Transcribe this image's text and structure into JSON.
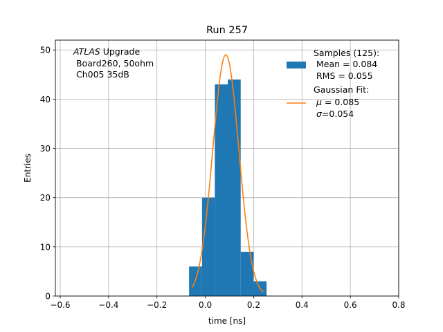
{
  "chart_data": {
    "type": "bar",
    "title": "Run 257",
    "xlabel": "time [ns]",
    "ylabel": "Entries",
    "xlim": [
      -0.62,
      0.8
    ],
    "ylim": [
      0,
      52
    ],
    "grid": true,
    "x_ticks": [
      -0.6,
      -0.4,
      -0.2,
      0.0,
      0.2,
      0.4,
      0.6,
      0.8
    ],
    "x_tick_labels": [
      "−0.6",
      "−0.4",
      "−0.2",
      "0.0",
      "0.2",
      "0.4",
      "0.6",
      "0.8"
    ],
    "y_ticks": [
      0,
      10,
      20,
      30,
      40,
      50
    ],
    "y_tick_labels": [
      "0",
      "10",
      "20",
      "30",
      "40",
      "50"
    ],
    "histogram": {
      "color": "#1f77b4",
      "bins": [
        {
          "x0": -0.067,
          "x1": -0.0135,
          "count": 6
        },
        {
          "x0": -0.0135,
          "x1": 0.0395,
          "count": 20
        },
        {
          "x0": 0.0395,
          "x1": 0.093,
          "count": 43
        },
        {
          "x0": 0.093,
          "x1": 0.1465,
          "count": 44
        },
        {
          "x0": 0.1465,
          "x1": 0.2,
          "count": 9
        },
        {
          "x0": 0.2,
          "x1": 0.2535,
          "count": 3
        }
      ]
    },
    "fit": {
      "color": "#ff7f0e",
      "mu": 0.085,
      "sigma": 0.054,
      "amplitude": 49,
      "x_range": [
        -0.055,
        0.24
      ]
    },
    "annotation": {
      "line1_italic": "ATLAS",
      "line1_rest": " Upgrade",
      "line2": " Board260, 50ohm",
      "line3": " Ch005 35dB"
    },
    "legend": {
      "placement": "top-right",
      "samples": {
        "line1": "Samples (125):",
        "line2": " Mean = 0.084",
        "line3": " RMS = 0.055"
      },
      "fit": {
        "line1": "Gaussian Fit:",
        "mu_symbol": "μ",
        "mu_text": " = 0.085",
        "sigma_symbol": "σ",
        "sigma_text": "=0.054"
      }
    }
  }
}
